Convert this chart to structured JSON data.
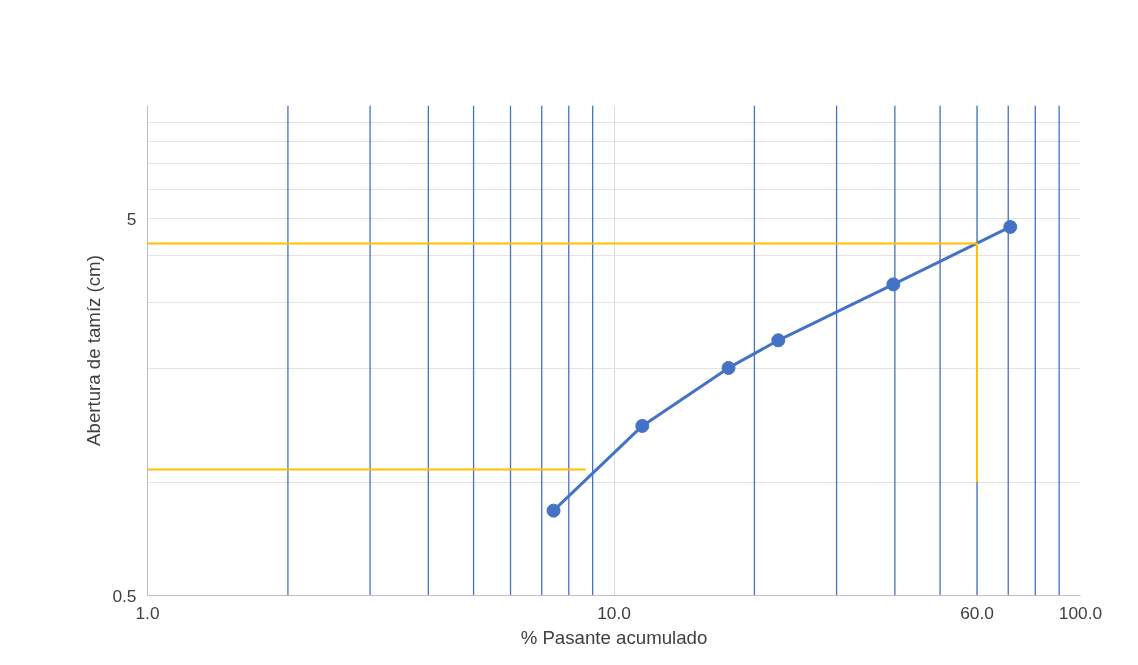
{
  "chart_data": {
    "type": "line",
    "xlabel": "% Pasante acumulado",
    "ylabel": "Abertura de tamíz (cm)",
    "log": "xy",
    "xlim": [
      1,
      100
    ],
    "ylim": [
      0.5,
      10
    ],
    "xticks": [
      {
        "value": 1,
        "label": "1.0"
      },
      {
        "value": 10,
        "label": "10.0"
      },
      {
        "value": 60,
        "label": "60.0"
      },
      {
        "value": 100,
        "label": "100.0"
      }
    ],
    "yticks": [
      0.5,
      {
        "value": 1,
        "label": null
      },
      {
        "value": 2,
        "label": null
      },
      {
        "value": 3,
        "label": null
      },
      {
        "value": 4,
        "label": null
      },
      5,
      {
        "value": 6,
        "label": null
      },
      {
        "value": 7,
        "label": null
      },
      {
        "value": 8,
        "label": null
      },
      {
        "value": 9,
        "label": null
      }
    ],
    "grid": true,
    "marker": "circle",
    "line_style": "solid",
    "series": [
      {
        "color": "#4472c4",
        "x": [
          7.42,
          11.5,
          17.6,
          22.5,
          39.7,
          70.7
        ],
        "values": [
          0.84,
          1.41,
          2.01,
          2.38,
          3.35,
          4.76
        ]
      },
      {
        "color": "#ffc000",
        "marker": "none",
        "x": [
          1,
          60,
          60
        ],
        "values": [
          4.3,
          4.3,
          1
        ]
      },
      {
        "color": "#ffc000",
        "marker": "none",
        "x": [
          1,
          8.7
        ],
        "values": [
          1.08,
          1.08
        ]
      }
    ],
    "ref_lines": [
      {
        "axis": "x",
        "value": 2,
        "color": "#4472c4"
      },
      {
        "axis": "x",
        "value": 3,
        "color": "#4472c4"
      },
      {
        "axis": "x",
        "value": 4,
        "color": "#4472c4"
      },
      {
        "axis": "x",
        "value": 5,
        "color": "#4472c4"
      },
      {
        "axis": "x",
        "value": 6,
        "color": "#4472c4"
      },
      {
        "axis": "x",
        "value": 7,
        "color": "#4472c4"
      },
      {
        "axis": "x",
        "value": 8,
        "color": "#4472c4"
      },
      {
        "axis": "x",
        "value": 9,
        "color": "#4472c4"
      },
      {
        "axis": "x",
        "value": 20,
        "color": "#4472c4"
      },
      {
        "axis": "x",
        "value": 30,
        "color": "#4472c4"
      },
      {
        "axis": "x",
        "value": 40,
        "color": "#4472c4"
      },
      {
        "axis": "x",
        "value": 50,
        "color": "#4472c4"
      },
      {
        "axis": "x",
        "value": 60,
        "color": "#4472c4"
      },
      {
        "axis": "x",
        "value": 70,
        "color": "#4472c4"
      },
      {
        "axis": "x",
        "value": 80,
        "color": "#4472c4"
      },
      {
        "axis": "x",
        "value": 90,
        "color": "#4472c4"
      }
    ]
  }
}
